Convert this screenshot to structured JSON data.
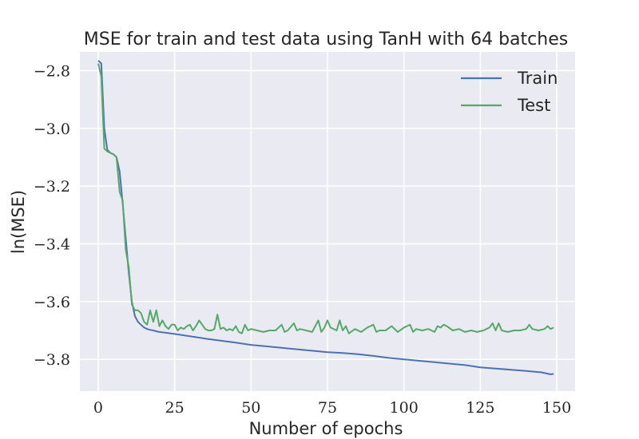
{
  "chart_data": {
    "type": "line",
    "title": "MSE for train and test data using TanH with 64 batches",
    "xlabel": "Number of epochs",
    "ylabel": "ln(MSE)",
    "xlim": [
      -6,
      156
    ],
    "ylim": [
      -3.91,
      -2.735
    ],
    "xticks": [
      0,
      25,
      50,
      75,
      100,
      125,
      150
    ],
    "yticks": [
      -3.8,
      -3.6,
      -3.4,
      -3.2,
      -3.0,
      -2.8
    ],
    "xtick_labels": [
      "0",
      "25",
      "50",
      "75",
      "100",
      "125",
      "150"
    ],
    "ytick_labels": [
      "−3.8",
      "−3.6",
      "−3.4",
      "−3.2",
      "−3.0",
      "−2.8"
    ],
    "grid": true,
    "legend_position": "top-right",
    "series": [
      {
        "name": "Train",
        "color": "#4c72b0",
        "x": [
          0,
          1,
          2,
          3,
          4,
          5,
          6,
          7,
          8,
          9,
          10,
          11,
          12,
          13,
          14,
          15,
          16,
          17,
          18,
          19,
          20,
          25,
          30,
          35,
          40,
          45,
          50,
          55,
          60,
          65,
          70,
          75,
          80,
          85,
          90,
          95,
          100,
          105,
          110,
          115,
          120,
          125,
          130,
          135,
          140,
          145,
          148,
          149
        ],
        "y": [
          -2.765,
          -2.775,
          -3.0,
          -3.075,
          -3.085,
          -3.09,
          -3.1,
          -3.15,
          -3.26,
          -3.38,
          -3.5,
          -3.6,
          -3.65,
          -3.67,
          -3.68,
          -3.69,
          -3.695,
          -3.698,
          -3.7,
          -3.703,
          -3.705,
          -3.712,
          -3.72,
          -3.728,
          -3.735,
          -3.742,
          -3.75,
          -3.755,
          -3.76,
          -3.765,
          -3.77,
          -3.775,
          -3.778,
          -3.782,
          -3.788,
          -3.795,
          -3.8,
          -3.805,
          -3.81,
          -3.815,
          -3.82,
          -3.828,
          -3.832,
          -3.836,
          -3.84,
          -3.845,
          -3.852,
          -3.85
        ]
      },
      {
        "name": "Test",
        "color": "#55a868",
        "x": [
          0,
          1,
          2,
          3,
          4,
          5,
          6,
          7,
          8,
          9,
          10,
          11,
          12,
          13,
          14,
          15,
          16,
          17,
          18,
          19,
          20,
          21,
          22,
          23,
          24,
          25,
          26,
          27,
          28,
          29,
          30,
          31,
          32,
          33,
          34,
          35,
          36,
          37,
          38,
          39,
          40,
          41,
          42,
          43,
          44,
          45,
          46,
          47,
          48,
          49,
          50,
          52,
          54,
          56,
          58,
          60,
          61,
          62,
          64,
          65,
          66,
          68,
          70,
          72,
          73,
          74,
          75,
          76,
          78,
          79,
          80,
          81,
          82,
          84,
          86,
          88,
          90,
          91,
          92,
          94,
          96,
          98,
          100,
          102,
          103,
          104,
          106,
          108,
          110,
          111,
          112,
          113,
          114,
          116,
          118,
          120,
          122,
          124,
          126,
          128,
          129,
          130,
          131,
          132,
          134,
          136,
          138,
          140,
          141,
          142,
          144,
          146,
          147,
          148,
          149
        ],
        "y": [
          -2.775,
          -2.82,
          -3.07,
          -3.08,
          -3.085,
          -3.09,
          -3.1,
          -3.22,
          -3.25,
          -3.42,
          -3.48,
          -3.61,
          -3.63,
          -3.63,
          -3.64,
          -3.67,
          -3.68,
          -3.63,
          -3.67,
          -3.63,
          -3.685,
          -3.665,
          -3.685,
          -3.695,
          -3.68,
          -3.68,
          -3.7,
          -3.69,
          -3.695,
          -3.685,
          -3.68,
          -3.7,
          -3.685,
          -3.665,
          -3.68,
          -3.695,
          -3.7,
          -3.7,
          -3.695,
          -3.645,
          -3.695,
          -3.69,
          -3.7,
          -3.695,
          -3.7,
          -3.685,
          -3.705,
          -3.71,
          -3.68,
          -3.7,
          -3.695,
          -3.7,
          -3.705,
          -3.7,
          -3.7,
          -3.68,
          -3.705,
          -3.7,
          -3.675,
          -3.7,
          -3.695,
          -3.7,
          -3.705,
          -3.665,
          -3.705,
          -3.69,
          -3.665,
          -3.69,
          -3.7,
          -3.665,
          -3.7,
          -3.685,
          -3.71,
          -3.695,
          -3.705,
          -3.69,
          -3.68,
          -3.705,
          -3.7,
          -3.7,
          -3.685,
          -3.705,
          -3.69,
          -3.68,
          -3.705,
          -3.695,
          -3.7,
          -3.695,
          -3.705,
          -3.685,
          -3.69,
          -3.68,
          -3.685,
          -3.7,
          -3.695,
          -3.705,
          -3.7,
          -3.705,
          -3.7,
          -3.69,
          -3.675,
          -3.7,
          -3.675,
          -3.7,
          -3.705,
          -3.7,
          -3.7,
          -3.695,
          -3.68,
          -3.695,
          -3.7,
          -3.695,
          -3.685,
          -3.695,
          -3.69
        ]
      }
    ]
  }
}
